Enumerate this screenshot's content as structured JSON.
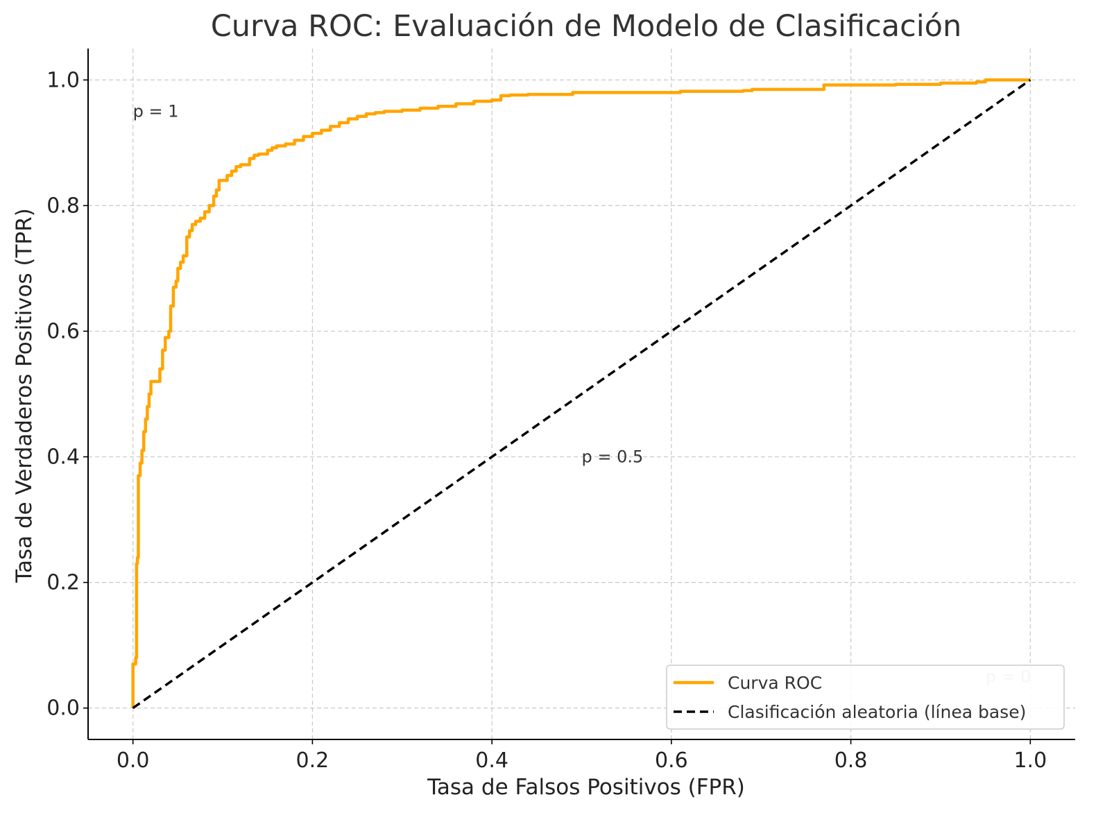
{
  "chart_data": {
    "type": "line",
    "title": "Curva ROC: Evaluación de Modelo de Clasificación",
    "xlabel": "Tasa de Falsos Positivos (FPR)",
    "ylabel": "Tasa de Verdaderos Positivos (TPR)",
    "xlim": [
      -0.05,
      1.05
    ],
    "ylim": [
      -0.05,
      1.05
    ],
    "grid": true,
    "xticks": [
      0.0,
      0.2,
      0.4,
      0.6,
      0.8,
      1.0
    ],
    "yticks": [
      0.0,
      0.2,
      0.4,
      0.6,
      0.8,
      1.0
    ],
    "xtick_labels": [
      "0.0",
      "0.2",
      "0.4",
      "0.6",
      "0.8",
      "1.0"
    ],
    "ytick_labels": [
      "0.0",
      "0.2",
      "0.4",
      "0.6",
      "0.8",
      "1.0"
    ],
    "legend_position": "lower-right",
    "series": [
      {
        "name": "Curva ROC",
        "color": "#FFA500",
        "style": "solid",
        "x": [
          0.0,
          0.0,
          0.003,
          0.004,
          0.005,
          0.006,
          0.008,
          0.01,
          0.012,
          0.014,
          0.016,
          0.018,
          0.02,
          0.023,
          0.026,
          0.03,
          0.033,
          0.036,
          0.04,
          0.042,
          0.045,
          0.048,
          0.05,
          0.053,
          0.056,
          0.06,
          0.063,
          0.066,
          0.07,
          0.075,
          0.08,
          0.085,
          0.09,
          0.093,
          0.096,
          0.1,
          0.105,
          0.11,
          0.115,
          0.12,
          0.13,
          0.135,
          0.14,
          0.15,
          0.155,
          0.16,
          0.17,
          0.18,
          0.19,
          0.2,
          0.21,
          0.22,
          0.23,
          0.24,
          0.25,
          0.26,
          0.27,
          0.28,
          0.3,
          0.32,
          0.34,
          0.36,
          0.38,
          0.4,
          0.41,
          0.42,
          0.44,
          0.48,
          0.49,
          0.6,
          0.61,
          0.68,
          0.69,
          0.76,
          0.77,
          0.85,
          0.9,
          0.94,
          0.95,
          1.0
        ],
        "y": [
          0.0,
          0.07,
          0.08,
          0.23,
          0.24,
          0.37,
          0.39,
          0.41,
          0.44,
          0.46,
          0.48,
          0.5,
          0.52,
          0.52,
          0.52,
          0.54,
          0.57,
          0.59,
          0.6,
          0.64,
          0.67,
          0.68,
          0.7,
          0.71,
          0.72,
          0.75,
          0.76,
          0.77,
          0.775,
          0.78,
          0.79,
          0.8,
          0.815,
          0.825,
          0.84,
          0.84,
          0.848,
          0.855,
          0.862,
          0.865,
          0.875,
          0.88,
          0.882,
          0.888,
          0.892,
          0.895,
          0.898,
          0.904,
          0.91,
          0.915,
          0.92,
          0.926,
          0.932,
          0.938,
          0.942,
          0.946,
          0.948,
          0.95,
          0.952,
          0.955,
          0.958,
          0.962,
          0.966,
          0.968,
          0.975,
          0.976,
          0.977,
          0.977,
          0.98,
          0.98,
          0.982,
          0.983,
          0.985,
          0.985,
          0.992,
          0.993,
          0.995,
          0.997,
          1.0,
          1.0
        ]
      },
      {
        "name": "Clasificación aleatoria (línea base)",
        "color": "#000000",
        "style": "dashed",
        "x": [
          0.0,
          1.0
        ],
        "y": [
          0.0,
          1.0
        ]
      }
    ],
    "annotations": [
      {
        "text": "p = 1",
        "x": 0.0,
        "y": 0.95,
        "color": "#333333"
      },
      {
        "text": "p = 0.5",
        "x": 0.5,
        "y": 0.4,
        "color": "#333333"
      },
      {
        "text": "p = 0",
        "x": 0.95,
        "y": 0.05,
        "color": "#bbbbbb"
      }
    ]
  }
}
